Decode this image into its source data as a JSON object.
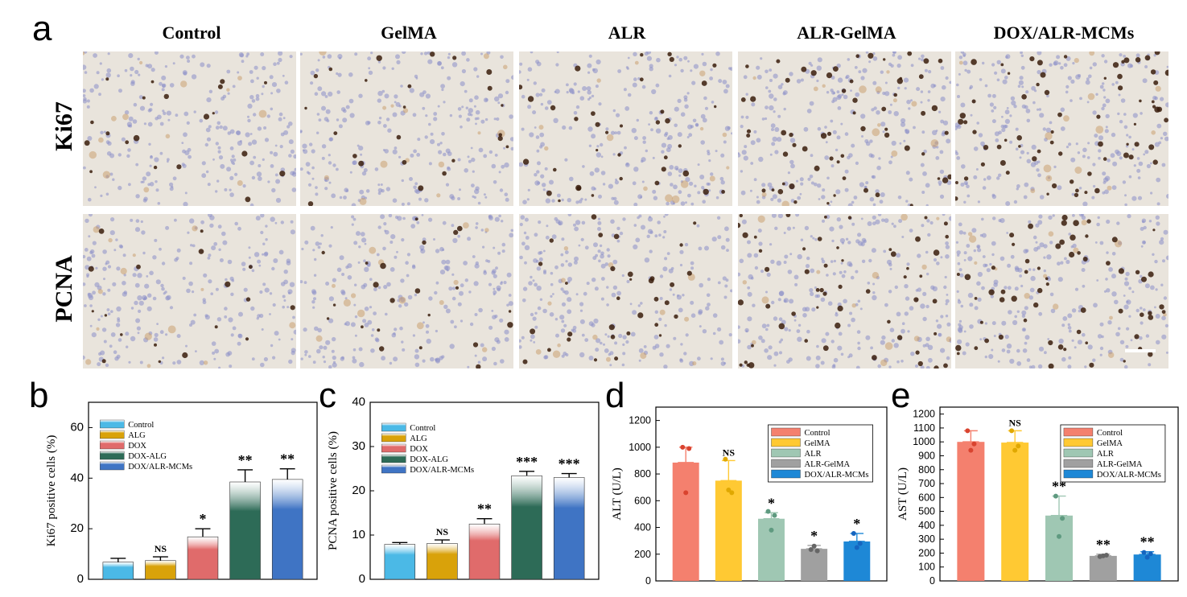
{
  "panel_labels": {
    "a": "a",
    "b": "b",
    "c": "c",
    "d": "d",
    "e": "e"
  },
  "columns": [
    "Control",
    "GelMA",
    "ALR",
    "ALR-GelMA",
    "DOX/ALR-MCMs"
  ],
  "rows": [
    "Ki67",
    "PCNA"
  ],
  "colors": {
    "tissue_bg": "#e9e4dc",
    "nucleus": "#8a8ec8",
    "positive": "#3a1d0c",
    "tan": "#c89a66",
    "b_bars": [
      "#4bb9e6",
      "#d9a20a",
      "#e06b6b",
      "#2d6b57",
      "#3f74c4"
    ],
    "d_bars": [
      "#f4806e",
      "#ffc933",
      "#9fc7b3",
      "#a0a0a0",
      "#1e88d6"
    ]
  },
  "chart_data": [
    {
      "id": "b",
      "type": "bar",
      "ylabel": "Ki67 positive cells (%)",
      "ylim": [
        0,
        70
      ],
      "yticks": [
        0,
        20,
        40,
        60
      ],
      "categories": [
        "Control",
        "ALG",
        "DOX",
        "DOX-ALG",
        "DOX/ALR-MCMs"
      ],
      "values": [
        6.8,
        7.4,
        16.8,
        38.5,
        39.5
      ],
      "errors": [
        1.5,
        1.5,
        3.2,
        4.8,
        4.2
      ],
      "annotations": [
        "",
        "NS",
        "*",
        "**",
        "**"
      ],
      "legend": [
        "Control",
        "ALG",
        "DOX",
        "DOX-ALG",
        "DOX/ALR-MCMs"
      ]
    },
    {
      "id": "c",
      "type": "bar",
      "ylabel": "PCNA positive cells (%)",
      "ylim": [
        0,
        40
      ],
      "yticks": [
        0,
        10,
        20,
        30,
        40
      ],
      "categories": [
        "Control",
        "ALG",
        "DOX",
        "DOX-ALG",
        "DOX/ALR-MCMs"
      ],
      "values": [
        7.9,
        8.1,
        12.5,
        23.4,
        23.0
      ],
      "errors": [
        0.4,
        0.8,
        1.2,
        1.0,
        0.9
      ],
      "annotations": [
        "",
        "NS",
        "**",
        "***",
        "***"
      ],
      "legend": [
        "Control",
        "ALG",
        "DOX",
        "DOX-ALG",
        "DOX/ALR-MCMs"
      ]
    },
    {
      "id": "d",
      "type": "bar",
      "ylabel": "ALT (U/L)",
      "ylim": [
        0,
        1300
      ],
      "yticks": [
        0,
        200,
        400,
        600,
        800,
        1000,
        1200
      ],
      "categories": [
        "Control",
        "GelMA",
        "ALR",
        "ALR-GelMA",
        "DOX/ALR-MCMs"
      ],
      "values": [
        885,
        750,
        465,
        240,
        295
      ],
      "errors": [
        115,
        150,
        45,
        25,
        60
      ],
      "points": [
        [
          1000,
          660,
          990
        ],
        [
          910,
          680,
          660
        ],
        [
          520,
          380,
          490
        ],
        [
          235,
          260,
          225
        ],
        [
          355,
          250,
          280
        ]
      ],
      "annotations": [
        "",
        "NS",
        "*",
        "*",
        "*"
      ],
      "legend": [
        "Control",
        "GelMA",
        "ALR",
        "ALR-GelMA",
        "DOX/ALR-MCMs"
      ]
    },
    {
      "id": "e",
      "type": "bar",
      "ylabel": "AST (U/L)",
      "ylim": [
        0,
        1250
      ],
      "yticks": [
        0,
        100,
        200,
        300,
        400,
        500,
        600,
        700,
        800,
        900,
        1000,
        1100,
        1200
      ],
      "categories": [
        "Control",
        "GelMA",
        "ALR",
        "ALR-GelMA",
        "DOX/ALR-MCMs"
      ],
      "values": [
        1000,
        995,
        470,
        180,
        190
      ],
      "errors": [
        80,
        85,
        140,
        12,
        20
      ],
      "points": [
        [
          1080,
          940,
          985
        ],
        [
          1080,
          940,
          970
        ],
        [
          610,
          320,
          450
        ],
        [
          175,
          180,
          185
        ],
        [
          205,
          170,
          195
        ]
      ],
      "annotations": [
        "",
        "NS",
        "**",
        "**",
        "**"
      ],
      "legend": [
        "Control",
        "GelMA",
        "ALR",
        "ALR-GelMA",
        "DOX/ALR-MCMs"
      ]
    }
  ]
}
